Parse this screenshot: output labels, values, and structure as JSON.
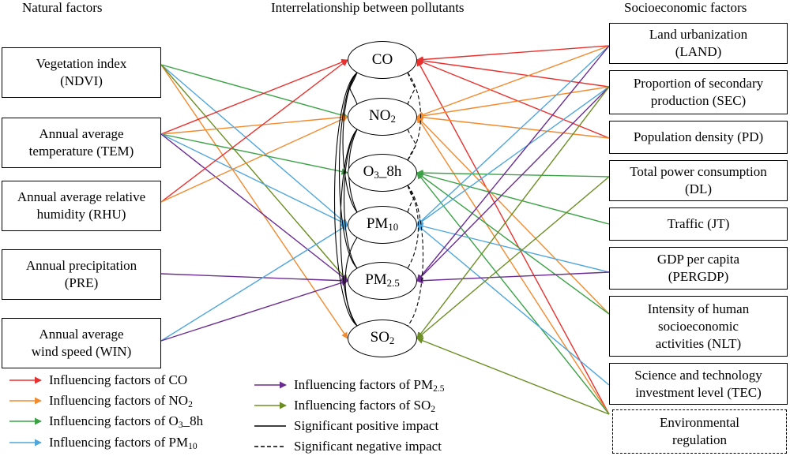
{
  "headers": {
    "natural": "Natural factors",
    "center": "Interrelationship between pollutants",
    "socio": "Socioeconomic factors"
  },
  "natural_factors": [
    {
      "line1": "Vegetation index",
      "line2": "(NDVI)"
    },
    {
      "line1": "Annual average",
      "line2": "temperature (TEM)"
    },
    {
      "line1": "Annual average relative",
      "line2": "humidity (RHU)"
    },
    {
      "line1": "Annual precipitation",
      "line2": "(PRE)"
    },
    {
      "line1": "Annual average",
      "line2": "wind speed (WIN)"
    }
  ],
  "pollutants": [
    {
      "main": "CO",
      "sub": ""
    },
    {
      "main": "NO",
      "sub": "2"
    },
    {
      "main": "O",
      "sub": "3",
      "suffix": "_8h"
    },
    {
      "main": "PM",
      "sub": "10"
    },
    {
      "main": "PM",
      "sub": "2.5"
    },
    {
      "main": "SO",
      "sub": "2"
    }
  ],
  "socio_factors": [
    {
      "line1": "Land urbanization",
      "line2": "(LAND)"
    },
    {
      "line1": "Proportion of secondary",
      "line2": "production (SEC)"
    },
    {
      "line1": "Population density (PD)"
    },
    {
      "line1": "Total power consumption",
      "line2": "(DL)"
    },
    {
      "line1": "Traffic (JT)"
    },
    {
      "line1": "GDP per capita",
      "line2": "(PERGDP)"
    },
    {
      "line1": "Intensity of human",
      "line2": "socioeconomic",
      "line3": "activities (NLT)"
    },
    {
      "line1": "Science and technology",
      "line2": "investment level (TEC)"
    },
    {
      "line1": "Environmental",
      "line2": "regulation"
    }
  ],
  "legend": {
    "co": {
      "text": "Influencing factors of CO",
      "sub": "",
      "color": "#e8312e"
    },
    "no2": {
      "text": "Influencing factors of NO",
      "sub": "2",
      "color": "#f28a2e"
    },
    "o3": {
      "text": "Influencing factors of O",
      "sub": "3",
      "suffix": "_8h",
      "color": "#3aa245"
    },
    "pm10": {
      "text": "Influencing factors of PM",
      "sub": "10",
      "color": "#4fa6dc"
    },
    "pm25": {
      "text": "Influencing factors of PM",
      "sub": "2.5",
      "color": "#6b2c91"
    },
    "so2": {
      "text": "Influencing factors of SO",
      "sub": "2",
      "color": "#6b8e23"
    },
    "positive": {
      "text": "Significant positive impact"
    },
    "negative": {
      "text": "Significant negative impact"
    }
  },
  "links": [
    [
      "NDVI",
      "NO2",
      "o3"
    ],
    [
      "NDVI",
      "PM10",
      "pm10"
    ],
    [
      "NDVI",
      "SO2",
      "no2"
    ],
    [
      "NDVI",
      "PM25",
      "so2"
    ],
    [
      "TEM",
      "CO",
      "co"
    ],
    [
      "TEM",
      "NO2",
      "no2"
    ],
    [
      "TEM",
      "O3",
      "o3"
    ],
    [
      "TEM",
      "PM10",
      "pm10"
    ],
    [
      "TEM",
      "PM25",
      "pm25"
    ],
    [
      "RHU",
      "CO",
      "co"
    ],
    [
      "RHU",
      "NO2",
      "no2"
    ],
    [
      "PRE",
      "PM25",
      "pm25"
    ],
    [
      "WIN",
      "PM10",
      "pm10"
    ],
    [
      "WIN",
      "PM25",
      "pm25"
    ],
    [
      "CO",
      "LAND",
      "co"
    ],
    [
      "CO",
      "SEC",
      "co"
    ],
    [
      "CO",
      "PD",
      "co"
    ],
    [
      "CO",
      "ENV",
      "co"
    ],
    [
      "NO2",
      "LAND",
      "no2"
    ],
    [
      "NO2",
      "SEC",
      "no2"
    ],
    [
      "NO2",
      "PD",
      "no2"
    ],
    [
      "NO2",
      "NLT",
      "no2"
    ],
    [
      "NO2",
      "ENV",
      "no2"
    ],
    [
      "O3",
      "DL",
      "o3"
    ],
    [
      "O3",
      "JT",
      "o3"
    ],
    [
      "O3",
      "NLT",
      "o3"
    ],
    [
      "O3",
      "ENV",
      "o3"
    ],
    [
      "PM10",
      "LAND",
      "pm10"
    ],
    [
      "PM10",
      "SEC",
      "pm10"
    ],
    [
      "PM10",
      "PERGDP",
      "pm10"
    ],
    [
      "PM10",
      "TEC",
      "pm10"
    ],
    [
      "PM25",
      "LAND",
      "pm25"
    ],
    [
      "PM25",
      "SEC",
      "pm25"
    ],
    [
      "PM25",
      "PERGDP",
      "pm25"
    ],
    [
      "SO2",
      "SEC",
      "so2"
    ],
    [
      "SO2",
      "DL",
      "so2"
    ],
    [
      "SO2",
      "ENV",
      "so2"
    ]
  ]
}
